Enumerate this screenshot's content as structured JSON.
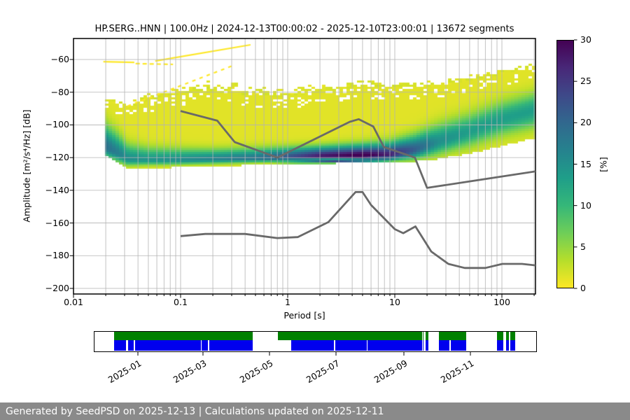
{
  "title": "HP.SERG..HNN | 100.0Hz | 2024-12-13T00:00:02 - 2025-12-10T23:00:01 | 13672 segments",
  "footer": {
    "text": "Generated by SeedPSD on 2025-12-13 | Calculations updated on 2025-12-11",
    "bg": "#8a8a8a"
  },
  "chart_data": {
    "type": "heatmap",
    "title": "HP.SERG..HNN | 100.0Hz | 2024-12-13T00:00:02 - 2025-12-10T23:00:01 | 13672 segments",
    "xlabel": "Period [s]",
    "ylabel": "Amplitude [m²/s⁴/Hz] [dB]",
    "x_scale": "log",
    "xlim": [
      0.01,
      206
    ],
    "ylim": [
      -203,
      -47
    ],
    "grid": "on",
    "grid_color": "#b3b3b3",
    "x_ticks": [
      {
        "label": "0.01",
        "value": 0.01
      },
      {
        "label": "0.1",
        "value": 0.1
      },
      {
        "label": "1",
        "value": 1
      },
      {
        "label": "10",
        "value": 10
      },
      {
        "label": "100",
        "value": 100
      }
    ],
    "y_ticks": [
      {
        "label": "−60",
        "value": -60
      },
      {
        "label": "−80",
        "value": -80
      },
      {
        "label": "−100",
        "value": -100
      },
      {
        "label": "−120",
        "value": -120
      },
      {
        "label": "−140",
        "value": -140
      },
      {
        "label": "−160",
        "value": -160
      },
      {
        "label": "−180",
        "value": -180
      },
      {
        "label": "−200",
        "value": -200
      }
    ],
    "colorbar": {
      "label": "[%]",
      "min": 0,
      "max": 30,
      "ticks": [
        {
          "label": "0",
          "value": 0
        },
        {
          "label": "5",
          "value": 5
        },
        {
          "label": "10",
          "value": 10
        },
        {
          "label": "15",
          "value": 15
        },
        {
          "label": "20",
          "value": 20
        },
        {
          "label": "25",
          "value": 25
        },
        {
          "label": "30",
          "value": 30
        }
      ],
      "colormap": "viridis_r",
      "viridis_stops": [
        "#440154",
        "#482878",
        "#3e4989",
        "#31688e",
        "#26828e",
        "#1f9e89",
        "#35b779",
        "#6ece58",
        "#b5de2b",
        "#fde725"
      ]
    },
    "ppsd_profile": {
      "pmin_log": -1.719,
      "note": "column-wise PPSD probability profile: mode amplitude [dB], peak probability [%], gaussian spreads, solid-cloud top, speckle top, bottom envelope",
      "breakpoints": [
        {
          "logp": -1.719,
          "mode": -113,
          "peak": 18,
          "sigUp": 9,
          "sigDn": 4,
          "top": -86,
          "sTop": -84,
          "bot": -118
        },
        {
          "logp": -1.6,
          "mode": -117,
          "peak": 16,
          "sigUp": 8,
          "sigDn": 3.5,
          "top": -87,
          "sTop": -84,
          "bot": -122
        },
        {
          "logp": -1.49,
          "mode": -121,
          "peak": 14,
          "sigUp": 6,
          "sigDn": 2.5,
          "top": -89,
          "sTop": -85,
          "bot": -127
        },
        {
          "logp": -1.3,
          "mode": -121.5,
          "peak": 13,
          "sigUp": 5,
          "sigDn": 2,
          "top": -85,
          "sTop": -80,
          "bot": -126.5
        },
        {
          "logp": -1.0,
          "mode": -121.5,
          "peak": 14,
          "sigUp": 4.5,
          "sigDn": 1.8,
          "top": -81,
          "sTop": -76,
          "bot": -126
        },
        {
          "logp": -0.7,
          "mode": -121,
          "peak": 15,
          "sigUp": 4,
          "sigDn": 1.8,
          "top": -80,
          "sTop": -72,
          "bot": -125.5
        },
        {
          "logp": -0.3,
          "mode": -120.5,
          "peak": 17,
          "sigUp": 4,
          "sigDn": 1.6,
          "top": -82,
          "sTop": -75,
          "bot": -124.5
        },
        {
          "logp": 0.0,
          "mode": -120,
          "peak": 21,
          "sigUp": 4,
          "sigDn": 1.6,
          "top": -83,
          "sTop": -77,
          "bot": -124
        },
        {
          "logp": 0.3,
          "mode": -119.5,
          "peak": 27,
          "sigUp": 4,
          "sigDn": 1.8,
          "top": -80,
          "sTop": -74,
          "bot": -123.8
        },
        {
          "logp": 0.7,
          "mode": -119.2,
          "peak": 30,
          "sigUp": 4.5,
          "sigDn": 1.8,
          "top": -77,
          "sTop": -72,
          "bot": -123.2
        },
        {
          "logp": 0.95,
          "mode": -118.5,
          "peak": 26,
          "sigUp": 5,
          "sigDn": 2.2,
          "top": -77,
          "sTop": -73,
          "bot": -123
        },
        {
          "logp": 1.18,
          "mode": -115.5,
          "peak": 20,
          "sigUp": 6,
          "sigDn": 3.5,
          "top": -77,
          "sTop": -73,
          "bot": -122.5
        },
        {
          "logp": 1.4,
          "mode": -110.5,
          "peak": 14,
          "sigUp": 7,
          "sigDn": 5,
          "top": -76,
          "sTop": -72,
          "bot": -121
        },
        {
          "logp": 1.7,
          "mode": -104,
          "peak": 12,
          "sigUp": 7,
          "sigDn": 6,
          "top": -73,
          "sTop": -69,
          "bot": -117.5
        },
        {
          "logp": 2.0,
          "mode": -96.5,
          "peak": 12,
          "sigUp": 7,
          "sigDn": 6.5,
          "top": -69,
          "sTop": -65,
          "bot": -113
        },
        {
          "logp": 2.314,
          "mode": -91,
          "peak": 12,
          "sigUp": 7,
          "sigDn": 7,
          "top": -64,
          "sTop": -62,
          "bot": -108
        }
      ]
    },
    "streaks": [
      {
        "points": [
          [
            0.019,
            -61.3
          ],
          [
            0.037,
            -61.8
          ]
        ],
        "dash": []
      },
      {
        "points": [
          [
            0.038,
            -62.5
          ],
          [
            0.085,
            -63.0
          ]
        ],
        "dash": [
          6,
          4
        ]
      },
      {
        "points": [
          [
            0.058,
            -60.9
          ],
          [
            0.45,
            -51.0
          ]
        ],
        "dash": []
      },
      {
        "points": [
          [
            0.032,
            -88.5
          ],
          [
            0.3,
            -64.0
          ]
        ],
        "dash": [
          5,
          6
        ]
      }
    ],
    "noise_models": {
      "color": "#696969",
      "nhnm": [
        [
          0.1,
          -91.5
        ],
        [
          0.22,
          -97.4
        ],
        [
          0.32,
          -110.5
        ],
        [
          0.8,
          -120.0
        ],
        [
          3.8,
          -98.1
        ],
        [
          4.6,
          -96.5
        ],
        [
          6.3,
          -101.0
        ],
        [
          7.9,
          -113.5
        ],
        [
          15.4,
          -120.0
        ],
        [
          20.0,
          -138.5
        ],
        [
          206.0,
          -128.4
        ]
      ],
      "nlnm": [
        [
          0.1,
          -168.0
        ],
        [
          0.17,
          -166.7
        ],
        [
          0.4,
          -166.7
        ],
        [
          0.8,
          -169.2
        ],
        [
          1.24,
          -168.6
        ],
        [
          2.4,
          -159.4
        ],
        [
          4.3,
          -141.1
        ],
        [
          5.0,
          -141.1
        ],
        [
          6.0,
          -149.0
        ],
        [
          10.0,
          -163.8
        ],
        [
          12.0,
          -166.2
        ],
        [
          15.6,
          -162.1
        ],
        [
          21.9,
          -177.5
        ],
        [
          31.6,
          -185.0
        ],
        [
          45.0,
          -187.5
        ],
        [
          70.0,
          -187.5
        ],
        [
          101.0,
          -185.0
        ],
        [
          154.0,
          -185.0
        ],
        [
          206.0,
          -185.9
        ]
      ]
    }
  },
  "timeline": {
    "colors": {
      "green": "#008000",
      "blue": "#0000ee"
    },
    "green_segments": [
      [
        0.0445,
        0.3603
      ],
      [
        0.4159,
        0.7429
      ],
      [
        0.7445,
        0.7476
      ],
      [
        0.7508,
        0.7587
      ],
      [
        0.7825,
        0.8429
      ],
      [
        0.9127,
        0.927
      ],
      [
        0.9349,
        0.9397
      ],
      [
        0.9429,
        0.954
      ]
    ],
    "blue_segments": [
      [
        0.0445,
        0.073
      ],
      [
        0.0762,
        0.089
      ],
      [
        0.0921,
        0.2413
      ],
      [
        0.2444,
        0.2587
      ],
      [
        0.2619,
        0.3603
      ],
      [
        0.4476,
        0.5444
      ],
      [
        0.5476,
        0.6175
      ],
      [
        0.6206,
        0.7429
      ],
      [
        0.7445,
        0.7476
      ],
      [
        0.7508,
        0.7587
      ],
      [
        0.7825,
        0.8063
      ],
      [
        0.8095,
        0.8429
      ],
      [
        0.9127,
        0.927
      ],
      [
        0.9349,
        0.9397
      ],
      [
        0.9429,
        0.954
      ]
    ],
    "ticks": [
      {
        "label": "2025-01",
        "f": 0.0984
      },
      {
        "label": "2025-03",
        "f": 0.246
      },
      {
        "label": "2025-05",
        "f": 0.3968
      },
      {
        "label": "2025-07",
        "f": 0.5476
      },
      {
        "label": "2025-09",
        "f": 0.7016
      },
      {
        "label": "2025-11",
        "f": 0.8524
      }
    ]
  }
}
